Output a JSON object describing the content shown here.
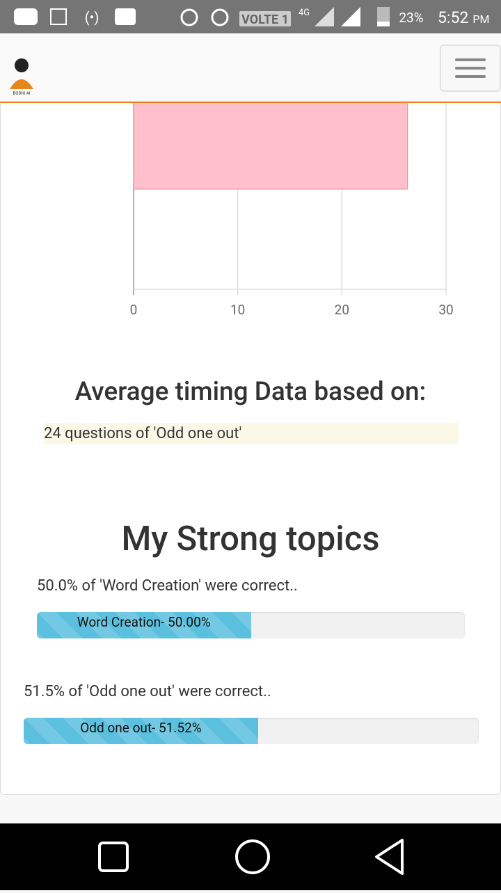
{
  "status_bar": {
    "network": "VOLTE 1",
    "signal": "4G",
    "battery": "23%",
    "time": "5:52",
    "ampm": "PM"
  },
  "header": {
    "logo_text": "BODHI AI"
  },
  "chart_data": {
    "type": "bar",
    "orientation": "horizontal",
    "values": [
      26.3
    ],
    "color": "#ffc0cb",
    "xlim": [
      0,
      30
    ],
    "xticks": [
      0,
      10,
      20,
      30
    ],
    "grid": true
  },
  "timing": {
    "title": "Average timing Data based on:",
    "note": "24 questions of 'Odd one out'"
  },
  "strong_topics": {
    "title": "My Strong topics",
    "items": [
      {
        "summary": "50.0% of 'Word Creation' were correct..",
        "label": "Word Creation- 50.00%",
        "value": 50.0
      },
      {
        "summary": "51.5% of 'Odd one out' were correct..",
        "label": "Odd one out- 51.52%",
        "value": 51.52
      }
    ]
  }
}
